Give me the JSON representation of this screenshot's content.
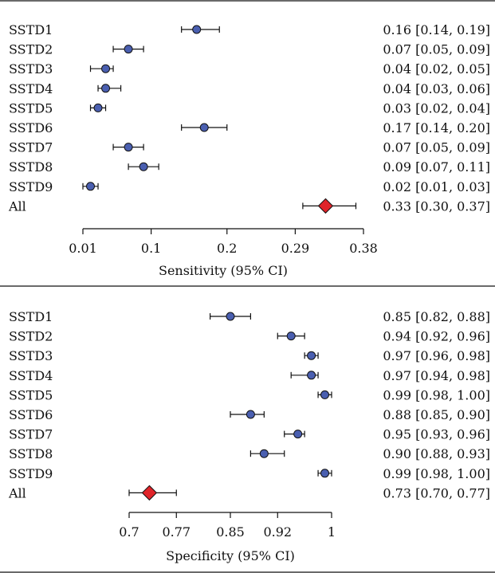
{
  "chart_data": [
    {
      "type": "forest",
      "xlabel": "Sensitivity (95% CI)",
      "xlim": [
        0.01,
        0.38
      ],
      "xticks": [
        0.01,
        0.1,
        0.2,
        0.29,
        0.38
      ],
      "xtick_labels": [
        "0.01",
        "0.1",
        "0.2",
        "0.29",
        "0.38"
      ],
      "studies": [
        {
          "name": "SSTD1",
          "est": 0.16,
          "lo": 0.14,
          "hi": 0.19,
          "ci_text": "0.16 [0.14, 0.19]"
        },
        {
          "name": "SSTD2",
          "est": 0.07,
          "lo": 0.05,
          "hi": 0.09,
          "ci_text": "0.07 [0.05, 0.09]"
        },
        {
          "name": "SSTD3",
          "est": 0.04,
          "lo": 0.02,
          "hi": 0.05,
          "ci_text": "0.04 [0.02, 0.05]"
        },
        {
          "name": "SSTD4",
          "est": 0.04,
          "lo": 0.03,
          "hi": 0.06,
          "ci_text": "0.04 [0.03, 0.06]"
        },
        {
          "name": "SSTD5",
          "est": 0.03,
          "lo": 0.02,
          "hi": 0.04,
          "ci_text": "0.03 [0.02, 0.04]"
        },
        {
          "name": "SSTD6",
          "est": 0.17,
          "lo": 0.14,
          "hi": 0.2,
          "ci_text": "0.17 [0.14, 0.20]"
        },
        {
          "name": "SSTD7",
          "est": 0.07,
          "lo": 0.05,
          "hi": 0.09,
          "ci_text": "0.07 [0.05, 0.09]"
        },
        {
          "name": "SSTD8",
          "est": 0.09,
          "lo": 0.07,
          "hi": 0.11,
          "ci_text": "0.09 [0.07, 0.11]"
        },
        {
          "name": "SSTD9",
          "est": 0.02,
          "lo": 0.01,
          "hi": 0.03,
          "ci_text": "0.02 [0.01, 0.03]"
        }
      ],
      "pooled": {
        "name": "All",
        "est": 0.33,
        "lo": 0.3,
        "hi": 0.37,
        "ci_text": "0.33 [0.30, 0.37]"
      }
    },
    {
      "type": "forest",
      "xlabel": "Specificity (95% CI)",
      "xlim": [
        0.7,
        1.0
      ],
      "xticks": [
        0.7,
        0.77,
        0.85,
        0.92,
        1.0
      ],
      "xtick_labels": [
        "0.7",
        "0.77",
        "0.85",
        "0.92",
        "1"
      ],
      "studies": [
        {
          "name": "SSTD1",
          "est": 0.85,
          "lo": 0.82,
          "hi": 0.88,
          "ci_text": "0.85 [0.82, 0.88]"
        },
        {
          "name": "SSTD2",
          "est": 0.94,
          "lo": 0.92,
          "hi": 0.96,
          "ci_text": "0.94 [0.92, 0.96]"
        },
        {
          "name": "SSTD3",
          "est": 0.97,
          "lo": 0.96,
          "hi": 0.98,
          "ci_text": "0.97 [0.96, 0.98]"
        },
        {
          "name": "SSTD4",
          "est": 0.97,
          "lo": 0.94,
          "hi": 0.98,
          "ci_text": "0.97 [0.94, 0.98]"
        },
        {
          "name": "SSTD5",
          "est": 0.99,
          "lo": 0.98,
          "hi": 1.0,
          "ci_text": "0.99 [0.98, 1.00]"
        },
        {
          "name": "SSTD6",
          "est": 0.88,
          "lo": 0.85,
          "hi": 0.9,
          "ci_text": "0.88 [0.85, 0.90]"
        },
        {
          "name": "SSTD7",
          "est": 0.95,
          "lo": 0.93,
          "hi": 0.96,
          "ci_text": "0.95 [0.93, 0.96]"
        },
        {
          "name": "SSTD8",
          "est": 0.9,
          "lo": 0.88,
          "hi": 0.93,
          "ci_text": "0.90 [0.88, 0.93]"
        },
        {
          "name": "SSTD9",
          "est": 0.99,
          "lo": 0.98,
          "hi": 1.0,
          "ci_text": "0.99 [0.98, 1.00]"
        }
      ],
      "pooled": {
        "name": "All",
        "est": 0.73,
        "lo": 0.7,
        "hi": 0.77,
        "ci_text": "0.73 [0.70, 0.77]"
      }
    }
  ],
  "colors": {
    "study_marker": "#4a5fb0",
    "pooled_marker": "#e0242a",
    "ink": "#111111"
  }
}
